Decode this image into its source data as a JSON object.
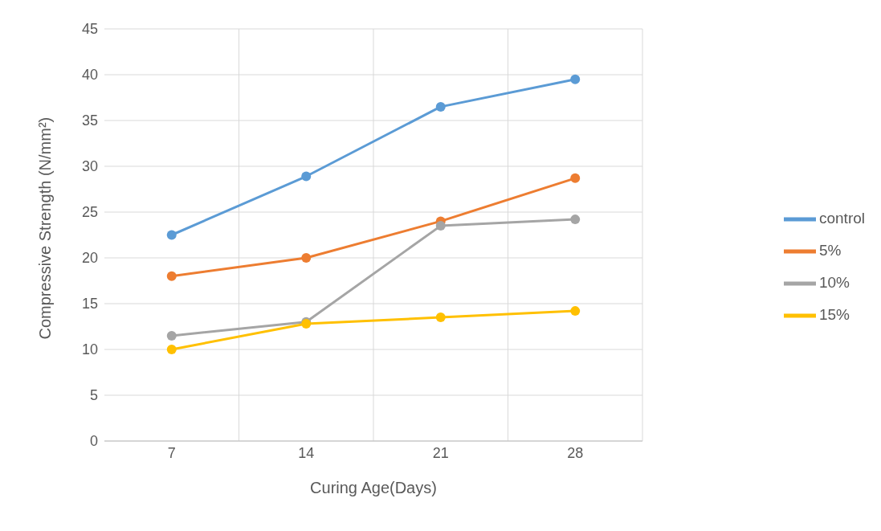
{
  "chart_data": {
    "type": "line",
    "xlabel": "Curing Age(Days)",
    "ylabel": "Compressive Strength (N/mm²)",
    "categories": [
      "7",
      "14",
      "21",
      "28"
    ],
    "series": [
      {
        "name": "control",
        "color": "#5b9bd5",
        "values": [
          22.5,
          28.9,
          36.5,
          39.5
        ]
      },
      {
        "name": "5%",
        "color": "#ed7d31",
        "values": [
          18.0,
          20.0,
          24.0,
          28.7
        ]
      },
      {
        "name": "10%",
        "color": "#a5a5a5",
        "values": [
          11.5,
          13.0,
          23.5,
          24.2
        ]
      },
      {
        "name": "15%",
        "color": "#ffc000",
        "values": [
          10.0,
          12.8,
          13.5,
          14.2
        ]
      }
    ],
    "ylim": [
      0,
      45
    ],
    "yticks": [
      0,
      5,
      10,
      15,
      20,
      25,
      30,
      35,
      40,
      45
    ],
    "grid": true,
    "legend": "right",
    "marker": "circle"
  }
}
